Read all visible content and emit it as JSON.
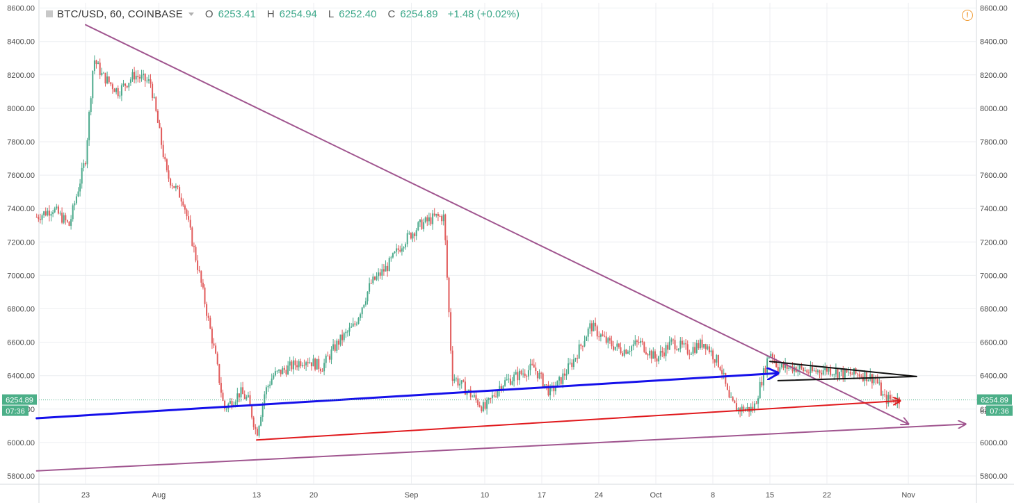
{
  "header": {
    "symbol": "BTC/USD, 60, COINBASE",
    "open_label": "O",
    "open": "6253.41",
    "high_label": "H",
    "high": "6254.94",
    "low_label": "L",
    "low": "6252.40",
    "close_label": "C",
    "close": "6254.89",
    "change": "+1.48 (+0.02%)",
    "warning_symbol": "!"
  },
  "colors": {
    "up": "#4aa98b",
    "down": "#e15a5a",
    "grid": "#eceef1",
    "axis_text": "#4a4a4a",
    "purple_line": "#a0558f",
    "blue_line": "#1510ea",
    "red_line": "#e0181c",
    "black_line": "#111111",
    "price_tag": "#4caf88"
  },
  "chart_data": {
    "type": "line",
    "title": "BTC/USD, 60, COINBASE",
    "ylim": [
      5760,
      8610
    ],
    "y_ticks": [
      5800,
      6000,
      6200,
      6400,
      6600,
      6800,
      7000,
      7200,
      7400,
      7600,
      7800,
      8000,
      8200,
      8400,
      8600
    ],
    "y_tick_labels": [
      "5800.00",
      "6000.00",
      "6200.00",
      "6400.00",
      "6600.00",
      "6800.00",
      "7000.00",
      "7200.00",
      "7400.00",
      "7600.00",
      "7800.00",
      "8000.00",
      "8200.00",
      "8400.00",
      "8600.00"
    ],
    "x_tick_labels": [
      "23",
      "Aug",
      "13",
      "20",
      "Sep",
      "10",
      "17",
      "24",
      "Oct",
      "8",
      "15",
      "22",
      "Nov"
    ],
    "x_tick_dates": [
      "2018-07-23",
      "2018-08-01",
      "2018-08-13",
      "2018-08-20",
      "2018-09-01",
      "2018-09-10",
      "2018-09-17",
      "2018-09-24",
      "2018-10-01",
      "2018-10-08",
      "2018-10-15",
      "2018-10-22",
      "2018-11-01"
    ],
    "xlim": [
      "2018-07-17",
      "2018-11-08"
    ],
    "grid": true,
    "legend": "none",
    "current_price": 6254.89,
    "current_price_label": "6254.89",
    "countdown_label": "07:36",
    "right_axis_partial_label": "62",
    "series": [
      {
        "kind": "price",
        "x": [
          "2018-07-17",
          "2018-07-19",
          "2018-07-21",
          "2018-07-23",
          "2018-07-24",
          "2018-07-25",
          "2018-07-27",
          "2018-07-29",
          "2018-07-31",
          "2018-08-02",
          "2018-08-04",
          "2018-08-06",
          "2018-08-08",
          "2018-08-09",
          "2018-08-11",
          "2018-08-12",
          "2018-08-13",
          "2018-08-14",
          "2018-08-15",
          "2018-08-17",
          "2018-08-19",
          "2018-08-21",
          "2018-08-23",
          "2018-08-25",
          "2018-08-27",
          "2018-08-29",
          "2018-08-31",
          "2018-09-02",
          "2018-09-04",
          "2018-09-05",
          "2018-09-06",
          "2018-09-08",
          "2018-09-10",
          "2018-09-12",
          "2018-09-14",
          "2018-09-16",
          "2018-09-18",
          "2018-09-19",
          "2018-09-21",
          "2018-09-23",
          "2018-09-25",
          "2018-09-27",
          "2018-09-29",
          "2018-10-01",
          "2018-10-03",
          "2018-10-05",
          "2018-10-07",
          "2018-10-09",
          "2018-10-10",
          "2018-10-11",
          "2018-10-13",
          "2018-10-15",
          "2018-10-16",
          "2018-10-18",
          "2018-10-20",
          "2018-10-22",
          "2018-10-24",
          "2018-10-26",
          "2018-10-28",
          "2018-10-29",
          "2018-10-31"
        ],
        "values": [
          7350,
          7400,
          7300,
          7700,
          8300,
          8200,
          8100,
          8200,
          8150,
          7600,
          7450,
          7000,
          6500,
          6200,
          6300,
          6250,
          6050,
          6300,
          6400,
          6450,
          6500,
          6450,
          6600,
          6700,
          6950,
          7050,
          7200,
          7300,
          7350,
          7350,
          6400,
          6300,
          6200,
          6350,
          6400,
          6450,
          6300,
          6350,
          6500,
          6700,
          6600,
          6550,
          6600,
          6500,
          6600,
          6550,
          6600,
          6450,
          6250,
          6200,
          6200,
          6550,
          6450,
          6450,
          6420,
          6440,
          6410,
          6410,
          6380,
          6260,
          6255
        ]
      }
    ],
    "annotations": [
      {
        "kind": "purple-down-trendline",
        "from": [
          "2018-07-23",
          8500
        ],
        "to": [
          "2018-11-01",
          6110
        ]
      },
      {
        "kind": "purple-support-line",
        "from": [
          "2018-07-17",
          5830
        ],
        "to": [
          "2018-11-08",
          6110
        ]
      },
      {
        "kind": "blue-arrow-line",
        "from": [
          "2018-07-17",
          6145
        ],
        "to": [
          "2018-10-16",
          6415
        ]
      },
      {
        "kind": "red-arrow-line",
        "from": [
          "2018-08-13",
          6015
        ],
        "to": [
          "2018-10-31",
          6250
        ]
      },
      {
        "kind": "black-triangle-upper",
        "from": [
          "2018-10-15",
          6485
        ],
        "to": [
          "2018-11-02",
          6395
        ]
      },
      {
        "kind": "black-triangle-lower",
        "from": [
          "2018-10-16",
          6370
        ],
        "to": [
          "2018-11-02",
          6395
        ]
      }
    ]
  }
}
